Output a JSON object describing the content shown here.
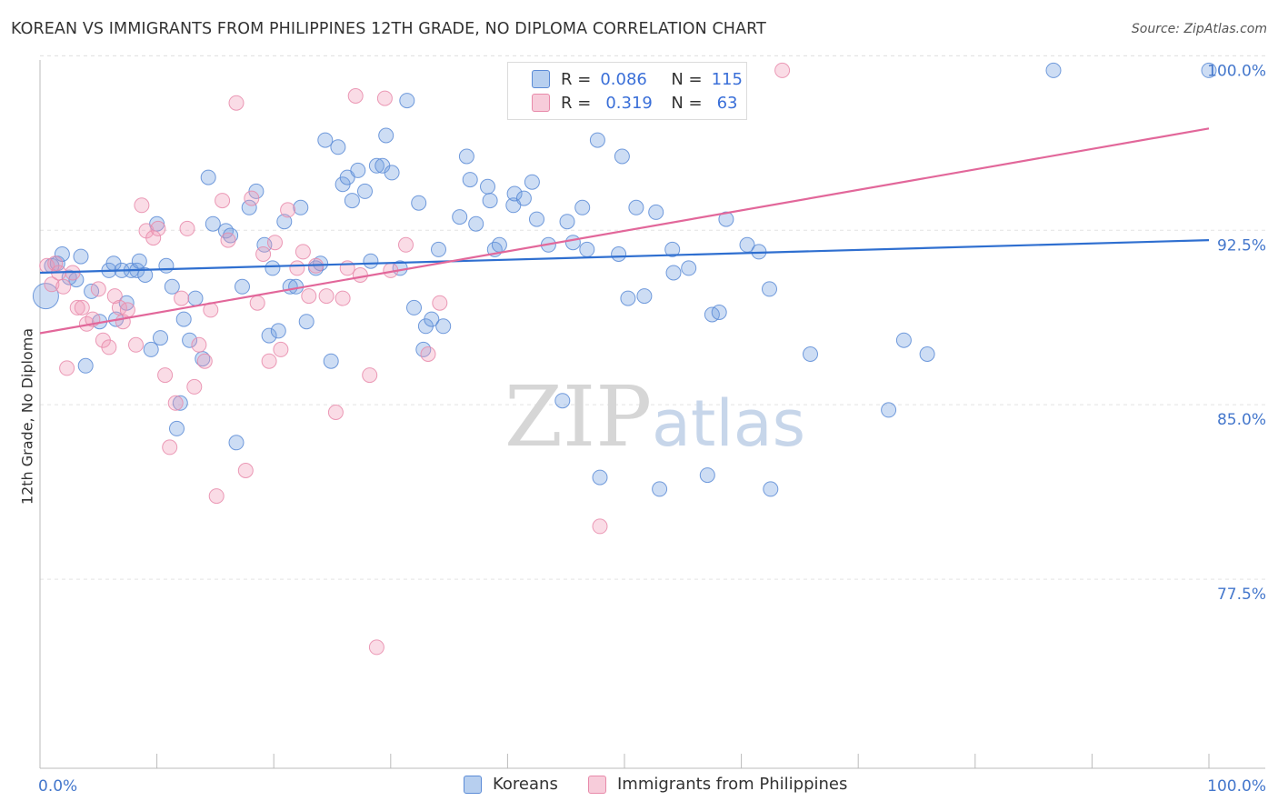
{
  "header": {
    "title": "KOREAN VS IMMIGRANTS FROM PHILIPPINES 12TH GRADE, NO DIPLOMA CORRELATION CHART",
    "source": "Source: ZipAtlas.com"
  },
  "watermark": {
    "zip": "ZIP",
    "atlas": "atlas"
  },
  "legend": {
    "r_label": "R =",
    "n_label": "N =",
    "series": [
      {
        "r": "0.086",
        "n": "115",
        "color": "#6f9fe0"
      },
      {
        "r": "0.319",
        "n": "63",
        "color": "#f09ab6"
      }
    ]
  },
  "bottom_legend": [
    "Koreans",
    "Immigrants from Philippines"
  ],
  "chart_data": {
    "type": "scatter",
    "title": "KOREAN VS IMMIGRANTS FROM PHILIPPINES 12TH GRADE, NO DIPLOMA CORRELATION CHART",
    "xlabel": "",
    "ylabel": "12th Grade, No Diploma",
    "xlim": [
      0,
      100
    ],
    "ylim": [
      70.0,
      100.6
    ],
    "x_tick_labels": [
      "0.0%",
      "100.0%"
    ],
    "y_ticks": [
      77.5,
      85.0,
      92.5,
      100.0
    ],
    "y_tick_labels": [
      "77.5%",
      "85.0%",
      "92.5%",
      "100.0%"
    ],
    "grid": true,
    "legend_position": "top-center",
    "series": [
      {
        "name": "Koreans",
        "color": "#6f9fe0",
        "stroke": "#5b8bd6",
        "trend": {
          "x": [
            0,
            100
          ],
          "y": [
            91.3,
            92.7
          ],
          "color": "#2f6fd0"
        },
        "points": [
          [
            0.5,
            90.3
          ],
          [
            1.0,
            91.6
          ],
          [
            1.5,
            91.7
          ],
          [
            1.9,
            92.1
          ],
          [
            2.5,
            91.1
          ],
          [
            3.1,
            91.0
          ],
          [
            3.5,
            92.0
          ],
          [
            3.9,
            87.3
          ],
          [
            4.4,
            90.5
          ],
          [
            5.1,
            89.2
          ],
          [
            5.9,
            91.4
          ],
          [
            6.3,
            91.7
          ],
          [
            6.5,
            89.3
          ],
          [
            7.0,
            91.4
          ],
          [
            7.4,
            90.0
          ],
          [
            7.8,
            91.4
          ],
          [
            8.3,
            91.4
          ],
          [
            8.5,
            91.8
          ],
          [
            9.0,
            91.2
          ],
          [
            9.5,
            88.0
          ],
          [
            10.0,
            93.4
          ],
          [
            10.3,
            88.5
          ],
          [
            10.8,
            91.6
          ],
          [
            11.3,
            90.7
          ],
          [
            11.7,
            84.6
          ],
          [
            12.0,
            85.7
          ],
          [
            12.3,
            89.3
          ],
          [
            12.8,
            88.4
          ],
          [
            13.3,
            90.2
          ],
          [
            13.9,
            87.6
          ],
          [
            14.4,
            95.4
          ],
          [
            14.8,
            93.4
          ],
          [
            15.9,
            93.1
          ],
          [
            16.3,
            92.9
          ],
          [
            16.8,
            84.0
          ],
          [
            17.3,
            90.7
          ],
          [
            17.9,
            94.1
          ],
          [
            18.5,
            94.8
          ],
          [
            19.2,
            92.5
          ],
          [
            19.6,
            88.6
          ],
          [
            19.9,
            91.5
          ],
          [
            20.4,
            88.8
          ],
          [
            20.9,
            93.5
          ],
          [
            21.4,
            90.7
          ],
          [
            21.9,
            90.7
          ],
          [
            22.3,
            94.1
          ],
          [
            22.8,
            89.2
          ],
          [
            23.6,
            91.5
          ],
          [
            24.0,
            91.7
          ],
          [
            24.4,
            97.0
          ],
          [
            24.9,
            87.5
          ],
          [
            25.5,
            96.7
          ],
          [
            25.9,
            95.1
          ],
          [
            26.3,
            95.4
          ],
          [
            26.7,
            94.4
          ],
          [
            27.2,
            95.7
          ],
          [
            27.8,
            94.8
          ],
          [
            28.3,
            91.8
          ],
          [
            28.8,
            95.9
          ],
          [
            29.3,
            95.9
          ],
          [
            29.6,
            97.2
          ],
          [
            30.1,
            95.6
          ],
          [
            30.8,
            91.5
          ],
          [
            31.4,
            98.7
          ],
          [
            32.0,
            89.8
          ],
          [
            32.4,
            94.3
          ],
          [
            32.8,
            88.0
          ],
          [
            33.0,
            89.0
          ],
          [
            33.5,
            89.3
          ],
          [
            34.1,
            92.3
          ],
          [
            34.5,
            89.0
          ],
          [
            35.9,
            93.7
          ],
          [
            36.5,
            96.3
          ],
          [
            36.8,
            95.3
          ],
          [
            37.3,
            93.4
          ],
          [
            38.3,
            95.0
          ],
          [
            38.5,
            94.4
          ],
          [
            38.9,
            92.3
          ],
          [
            39.3,
            92.5
          ],
          [
            40.5,
            94.2
          ],
          [
            40.6,
            94.7
          ],
          [
            41.4,
            94.5
          ],
          [
            42.1,
            95.2
          ],
          [
            42.5,
            93.6
          ],
          [
            43.5,
            92.5
          ],
          [
            44.7,
            85.8
          ],
          [
            45.1,
            93.5
          ],
          [
            45.6,
            92.6
          ],
          [
            46.4,
            94.1
          ],
          [
            46.8,
            92.3
          ],
          [
            47.7,
            97.0
          ],
          [
            47.9,
            82.5
          ],
          [
            49.5,
            92.1
          ],
          [
            49.8,
            96.3
          ],
          [
            50.3,
            90.2
          ],
          [
            51.0,
            94.1
          ],
          [
            51.7,
            90.3
          ],
          [
            52.7,
            93.9
          ],
          [
            53.0,
            82.0
          ],
          [
            54.1,
            92.3
          ],
          [
            54.2,
            91.3
          ],
          [
            55.5,
            91.5
          ],
          [
            57.1,
            82.6
          ],
          [
            57.5,
            89.5
          ],
          [
            58.1,
            89.6
          ],
          [
            58.7,
            93.6
          ],
          [
            60.5,
            92.5
          ],
          [
            61.5,
            92.2
          ],
          [
            62.4,
            90.6
          ],
          [
            62.5,
            82.0
          ],
          [
            65.9,
            87.8
          ],
          [
            72.6,
            85.4
          ],
          [
            73.9,
            88.4
          ],
          [
            75.9,
            87.8
          ],
          [
            86.7,
            100.0
          ],
          [
            100.0,
            100.0
          ]
        ]
      },
      {
        "name": "Immigrants from Philippines",
        "color": "#f09ab6",
        "stroke": "#e88aaa",
        "trend": {
          "x": [
            0,
            100
          ],
          "y": [
            88.7,
            97.5
          ],
          "color": "#e2679a"
        },
        "points": [
          [
            0.6,
            91.6
          ],
          [
            1.0,
            90.8
          ],
          [
            1.3,
            91.7
          ],
          [
            1.6,
            91.3
          ],
          [
            2.0,
            90.7
          ],
          [
            2.3,
            87.2
          ],
          [
            2.8,
            91.3
          ],
          [
            3.2,
            89.8
          ],
          [
            3.6,
            89.8
          ],
          [
            4.0,
            89.1
          ],
          [
            4.5,
            89.3
          ],
          [
            5.0,
            90.6
          ],
          [
            5.4,
            88.4
          ],
          [
            5.9,
            88.1
          ],
          [
            6.4,
            90.3
          ],
          [
            6.8,
            89.8
          ],
          [
            7.1,
            89.2
          ],
          [
            7.5,
            89.7
          ],
          [
            8.2,
            88.2
          ],
          [
            8.7,
            94.2
          ],
          [
            9.1,
            93.1
          ],
          [
            9.7,
            92.8
          ],
          [
            10.1,
            93.2
          ],
          [
            10.7,
            86.9
          ],
          [
            11.1,
            83.8
          ],
          [
            11.6,
            85.7
          ],
          [
            12.1,
            90.2
          ],
          [
            12.6,
            93.2
          ],
          [
            13.2,
            86.4
          ],
          [
            13.6,
            88.2
          ],
          [
            14.1,
            87.5
          ],
          [
            14.6,
            89.7
          ],
          [
            15.1,
            81.7
          ],
          [
            15.6,
            94.4
          ],
          [
            16.1,
            92.7
          ],
          [
            16.8,
            98.6
          ],
          [
            17.6,
            82.8
          ],
          [
            18.1,
            94.5
          ],
          [
            18.6,
            90.0
          ],
          [
            19.1,
            92.1
          ],
          [
            19.6,
            87.5
          ],
          [
            20.1,
            92.6
          ],
          [
            20.6,
            88.0
          ],
          [
            21.2,
            94.0
          ],
          [
            22.0,
            91.5
          ],
          [
            22.5,
            92.2
          ],
          [
            23.0,
            90.3
          ],
          [
            23.6,
            91.6
          ],
          [
            24.5,
            90.3
          ],
          [
            25.3,
            85.3
          ],
          [
            25.9,
            90.2
          ],
          [
            26.3,
            91.5
          ],
          [
            27.0,
            98.9
          ],
          [
            27.4,
            91.2
          ],
          [
            28.2,
            86.9
          ],
          [
            28.8,
            75.2
          ],
          [
            29.5,
            98.8
          ],
          [
            30.0,
            91.4
          ],
          [
            31.3,
            92.5
          ],
          [
            33.2,
            87.8
          ],
          [
            34.2,
            90.0
          ],
          [
            47.9,
            80.4
          ],
          [
            63.5,
            100.0
          ]
        ]
      }
    ]
  }
}
